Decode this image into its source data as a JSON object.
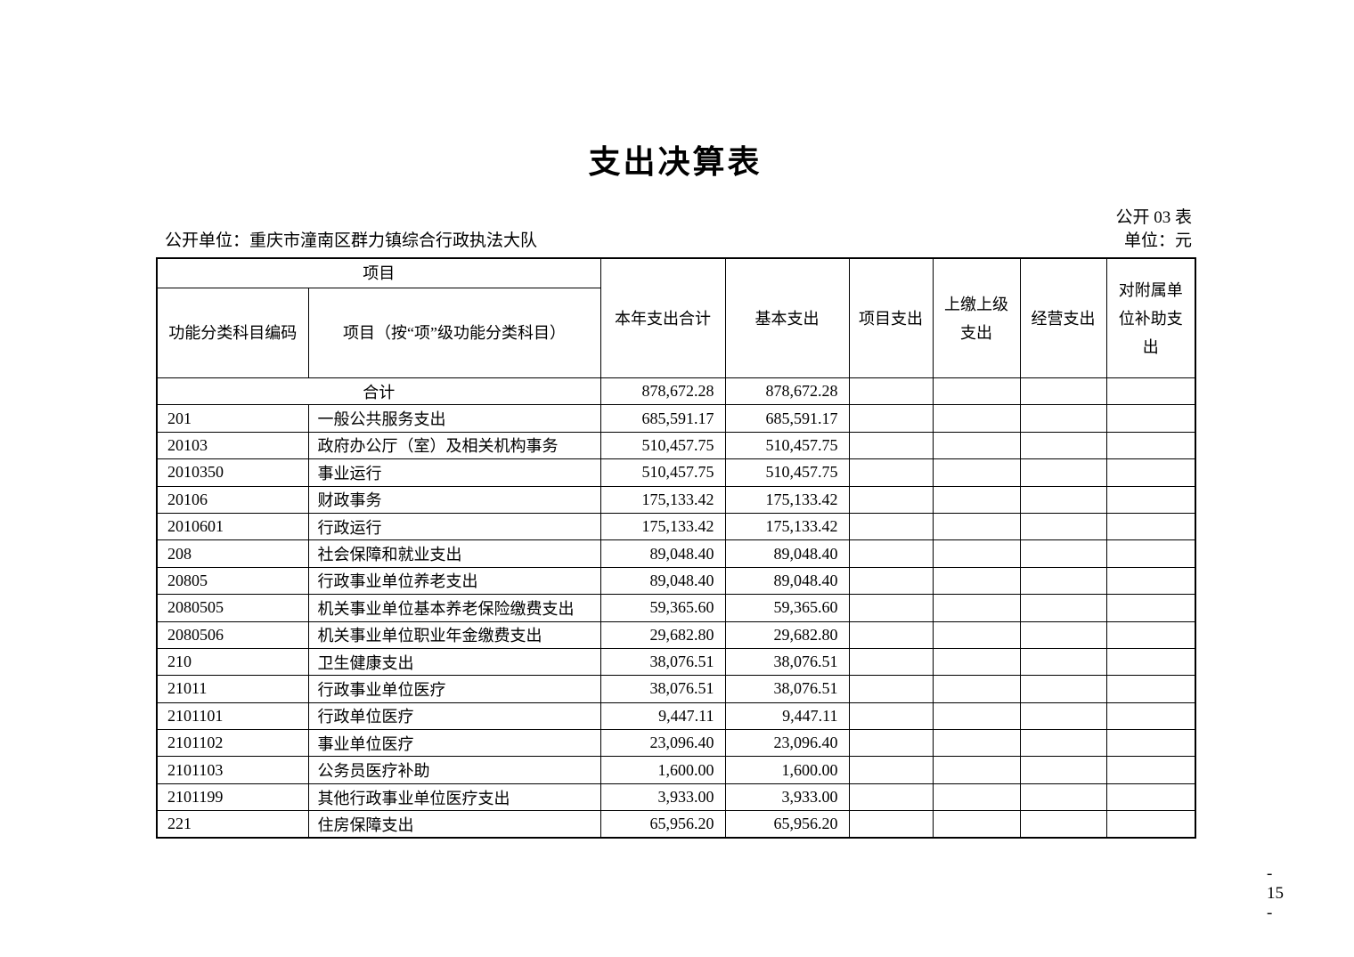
{
  "document": {
    "title": "支出决算表",
    "table_code": "公开 03 表",
    "publisher": "公开单位：重庆市潼南区群力镇综合行政执法大队",
    "currency_unit": "单位：元",
    "page_number": "- 15 -"
  },
  "table": {
    "header": {
      "project_group": "项目",
      "code": "功能分类科目编码",
      "item": "项目（按“项”级功能分类科目）",
      "year_total": "本年支出合计",
      "basic": "基本支出",
      "project": "项目支出",
      "upper_level": "上缴上级支出",
      "operating": "经营支出",
      "subsidy": "对附属单位补助支出"
    },
    "rows": [
      {
        "code": "",
        "item": "合计",
        "year_total": "878,672.28",
        "basic": "878,672.28"
      },
      {
        "code": "201",
        "item": "一般公共服务支出",
        "year_total": "685,591.17",
        "basic": "685,591.17"
      },
      {
        "code": "20103",
        "item": "政府办公厅（室）及相关机构事务",
        "year_total": "510,457.75",
        "basic": "510,457.75"
      },
      {
        "code": "2010350",
        "item": "事业运行",
        "year_total": "510,457.75",
        "basic": "510,457.75"
      },
      {
        "code": "20106",
        "item": "财政事务",
        "year_total": "175,133.42",
        "basic": "175,133.42"
      },
      {
        "code": "2010601",
        "item": "行政运行",
        "year_total": "175,133.42",
        "basic": "175,133.42"
      },
      {
        "code": "208",
        "item": "社会保障和就业支出",
        "year_total": "89,048.40",
        "basic": "89,048.40"
      },
      {
        "code": "20805",
        "item": "行政事业单位养老支出",
        "year_total": "89,048.40",
        "basic": "89,048.40"
      },
      {
        "code": "2080505",
        "item": "机关事业单位基本养老保险缴费支出",
        "year_total": "59,365.60",
        "basic": "59,365.60"
      },
      {
        "code": "2080506",
        "item": "机关事业单位职业年金缴费支出",
        "year_total": "29,682.80",
        "basic": "29,682.80"
      },
      {
        "code": "210",
        "item": "卫生健康支出",
        "year_total": "38,076.51",
        "basic": "38,076.51"
      },
      {
        "code": "21011",
        "item": "行政事业单位医疗",
        "year_total": "38,076.51",
        "basic": "38,076.51"
      },
      {
        "code": "2101101",
        "item": "行政单位医疗",
        "year_total": "9,447.11",
        "basic": "9,447.11"
      },
      {
        "code": "2101102",
        "item": "事业单位医疗",
        "year_total": "23,096.40",
        "basic": "23,096.40"
      },
      {
        "code": "2101103",
        "item": "公务员医疗补助",
        "year_total": "1,600.00",
        "basic": "1,600.00"
      },
      {
        "code": "2101199",
        "item": "其他行政事业单位医疗支出",
        "year_total": "3,933.00",
        "basic": "3,933.00"
      },
      {
        "code": "221",
        "item": "住房保障支出",
        "year_total": "65,956.20",
        "basic": "65,956.20"
      }
    ]
  }
}
